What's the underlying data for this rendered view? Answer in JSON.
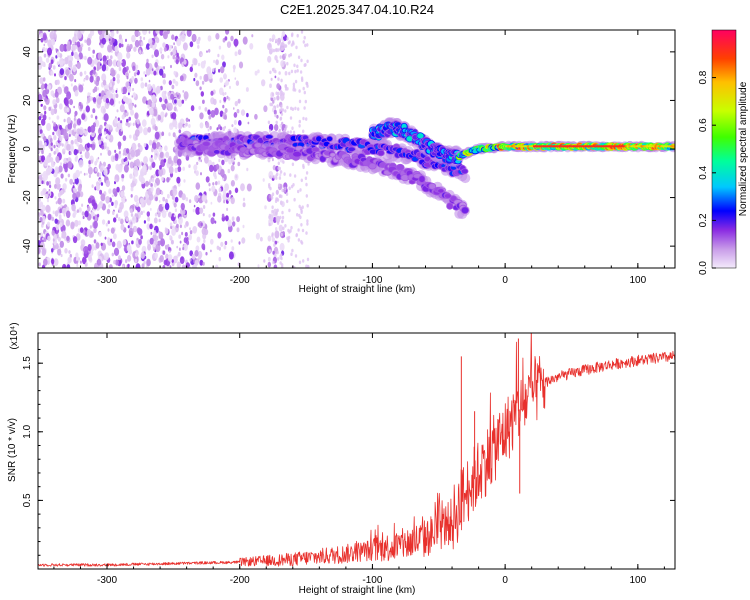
{
  "title": "C2E1.2025.347.04.10.R24",
  "chart_data": [
    {
      "type": "heatmap",
      "xlabel": "Height of straight line (km)",
      "ylabel": "Frequency (Hz)",
      "xlim": [
        -352,
        128
      ],
      "ylim": [
        -49,
        49
      ],
      "xticks": [
        -300,
        -200,
        -100,
        0,
        100
      ],
      "xtick_labels": [
        "-300",
        "-200",
        "-100",
        "0",
        "100"
      ],
      "yticks": [
        -40,
        -20,
        0,
        20,
        40
      ],
      "ytick_labels": [
        "-40",
        "-20",
        "0",
        "20",
        "40"
      ],
      "colorbar": {
        "label": "Normalized spectral amplitude",
        "range": [
          0,
          1
        ],
        "ticks": [
          0.0,
          0.2,
          0.4,
          0.6,
          0.8
        ],
        "tick_labels": [
          "0.0",
          "0.2",
          "0.4",
          "0.6",
          "0.8"
        ],
        "colors": [
          "#f4ebfb",
          "#c89be8",
          "#8a2be2",
          "#0000ff",
          "#00c8ff",
          "#00ff9a",
          "#40ff00",
          "#c8ff00",
          "#ffc000",
          "#ff4000",
          "#ff0060"
        ]
      },
      "features": [
        {
          "name": "noise band",
          "x_range": [
            -352,
            -165
          ],
          "freq_range": [
            -49,
            49
          ],
          "amplitude": 0.1
        },
        {
          "name": "upper branch",
          "points": [
            [
              -245,
              3
            ],
            [
              -200,
              3
            ],
            [
              -150,
              3
            ],
            [
              -120,
              2
            ],
            [
              -90,
              0
            ],
            [
              -70,
              -3
            ],
            [
              -50,
              -6
            ],
            [
              -40,
              -8
            ],
            [
              -30,
              -10
            ]
          ],
          "amplitude": 0.3
        },
        {
          "name": "lower branch",
          "points": [
            [
              -245,
              1
            ],
            [
              -200,
              0
            ],
            [
              -150,
              -2
            ],
            [
              -120,
              -4
            ],
            [
              -100,
              -6
            ],
            [
              -80,
              -9
            ],
            [
              -60,
              -14
            ],
            [
              -45,
              -20
            ],
            [
              -30,
              -26
            ]
          ],
          "amplitude": 0.2
        },
        {
          "name": "descending arc",
          "points": [
            [
              -100,
              6
            ],
            [
              -85,
              9
            ],
            [
              -75,
              7
            ],
            [
              -65,
              4
            ],
            [
              -55,
              0
            ],
            [
              -45,
              -3
            ],
            [
              -35,
              -3
            ]
          ],
          "amplitude": 0.4
        },
        {
          "name": "steady tone",
          "points": [
            [
              -35,
              -3
            ],
            [
              -20,
              0
            ],
            [
              0,
              1
            ],
            [
              20,
              1
            ],
            [
              60,
              1
            ],
            [
              100,
              1
            ],
            [
              128,
              1
            ]
          ],
          "amplitude": 0.85
        }
      ]
    },
    {
      "type": "line",
      "xlabel": "Height of straight line (km)",
      "ylabel": "SNR (10 * v/v)",
      "yscale_label": "(x10⁴)",
      "xlim": [
        -352,
        128
      ],
      "ylim": [
        0,
        1.72
      ],
      "xticks": [
        -300,
        -200,
        -100,
        0,
        100
      ],
      "xtick_labels": [
        "-300",
        "-200",
        "-100",
        "0",
        "100"
      ],
      "yticks": [
        0.5,
        1.0,
        1.5
      ],
      "ytick_labels": [
        "0.5",
        "1.0",
        "1.5"
      ],
      "color": "#e8302c",
      "series": [
        {
          "name": "SNR",
          "x": [
            -352,
            -300,
            -250,
            -200,
            -180,
            -160,
            -140,
            -120,
            -100,
            -80,
            -60,
            -40,
            -30,
            -20,
            -10,
            0,
            10,
            20,
            30,
            40,
            60,
            80,
            100,
            128
          ],
          "y": [
            0.03,
            0.03,
            0.04,
            0.05,
            0.06,
            0.07,
            0.09,
            0.11,
            0.14,
            0.17,
            0.22,
            0.35,
            0.55,
            0.7,
            0.85,
            1.0,
            1.15,
            1.28,
            1.36,
            1.4,
            1.45,
            1.49,
            1.52,
            1.55
          ]
        }
      ],
      "spikes": [
        [
          -33,
          1.55
        ],
        [
          -23,
          1.15
        ],
        [
          -5,
          0.95
        ],
        [
          10,
          1.68
        ],
        [
          11,
          0.55
        ]
      ]
    }
  ]
}
